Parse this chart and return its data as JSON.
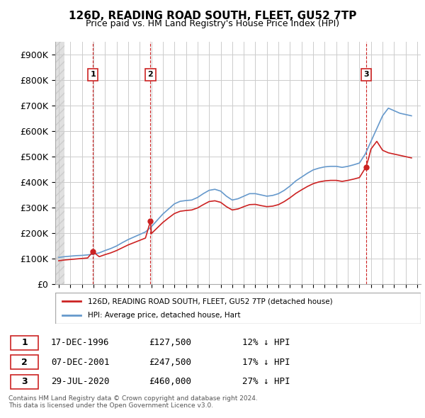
{
  "title": "126D, READING ROAD SOUTH, FLEET, GU52 7TP",
  "subtitle": "Price paid vs. HM Land Registry's House Price Index (HPI)",
  "ylabel": "",
  "ylim": [
    0,
    950000
  ],
  "yticks": [
    0,
    100000,
    200000,
    300000,
    400000,
    500000,
    600000,
    700000,
    800000,
    900000
  ],
  "ytick_labels": [
    "£0",
    "£100K",
    "£200K",
    "£300K",
    "£400K",
    "£500K",
    "£600K",
    "£700K",
    "£800K",
    "£900K"
  ],
  "hpi_color": "#6699cc",
  "price_color": "#cc2222",
  "sale_marker_color": "#cc2222",
  "transaction_line_color": "#cc2222",
  "background_hatch_color": "#e8e8e8",
  "grid_color": "#cccccc",
  "sales": [
    {
      "label": "1",
      "date_num": 1996.96,
      "price": 127500,
      "date_str": "17-DEC-1996",
      "pct": "12%"
    },
    {
      "label": "2",
      "date_num": 2001.93,
      "price": 247500,
      "date_str": "07-DEC-2001",
      "pct": "17%"
    },
    {
      "label": "3",
      "date_num": 2020.57,
      "price": 460000,
      "date_str": "29-JUL-2020",
      "pct": "27%"
    }
  ],
  "legend_entries": [
    "126D, READING ROAD SOUTH, FLEET, GU52 7TP (detached house)",
    "HPI: Average price, detached house, Hart"
  ],
  "footnote": "Contains HM Land Registry data © Crown copyright and database right 2024.\nThis data is licensed under the Open Government Licence v3.0.",
  "table_rows": [
    [
      "1",
      "17-DEC-1996",
      "£127,500",
      "12% ↓ HPI"
    ],
    [
      "2",
      "07-DEC-2001",
      "£247,500",
      "17% ↓ HPI"
    ],
    [
      "3",
      "29-JUL-2020",
      "£460,000",
      "27% ↓ HPI"
    ]
  ]
}
